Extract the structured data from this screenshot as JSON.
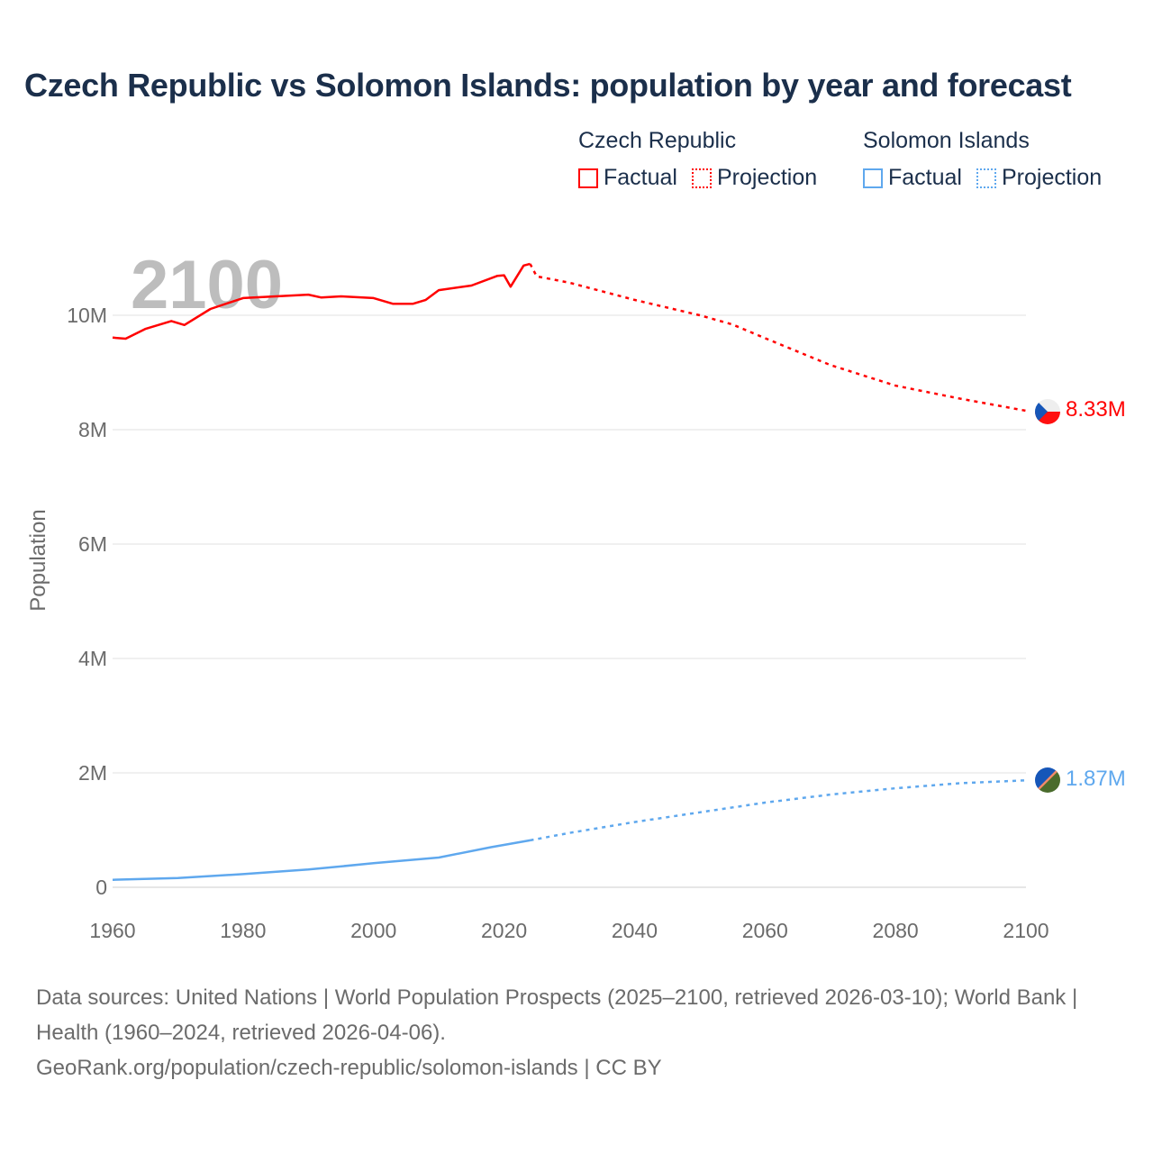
{
  "title": "Czech Republic vs Solomon Islands: population by year and forecast",
  "legend": {
    "groups": [
      {
        "name": "Czech Republic",
        "factual": "Factual",
        "projection": "Projection",
        "color": "#ff0000"
      },
      {
        "name": "Solomon Islands",
        "factual": "Factual",
        "projection": "Projection",
        "color": "#5fa8ee"
      }
    ]
  },
  "source": {
    "line1": "Data sources: United Nations | World Population Prospects (2025–2100, retrieved 2026-03-10); World Bank | Health (1960–2024, retrieved 2026-04-06).",
    "line2": "GeoRank.org/population/czech-republic/solomon-islands | CC BY"
  },
  "chart_data": {
    "type": "line",
    "title": "Czech Republic vs Solomon Islands: population by year and forecast",
    "ylabel": "Population",
    "xlabel": "",
    "year_watermark": "2100",
    "xlim": [
      1960,
      2100
    ],
    "ylim": [
      0,
      11000000
    ],
    "x_ticks": [
      1960,
      1980,
      2000,
      2020,
      2040,
      2060,
      2080,
      2100
    ],
    "y_ticks": [
      {
        "v": 0,
        "label": "0"
      },
      {
        "v": 2000000,
        "label": "2M"
      },
      {
        "v": 4000000,
        "label": "4M"
      },
      {
        "v": 6000000,
        "label": "6M"
      },
      {
        "v": 8000000,
        "label": "8M"
      },
      {
        "v": 10000000,
        "label": "10M"
      }
    ],
    "grid": true,
    "series": [
      {
        "name": "Czech Republic",
        "color": "#ff0000",
        "end_label": "8.33M",
        "factual": [
          [
            1960,
            9.61
          ],
          [
            1962,
            9.59
          ],
          [
            1965,
            9.76
          ],
          [
            1969,
            9.9
          ],
          [
            1971,
            9.83
          ],
          [
            1975,
            10.11
          ],
          [
            1980,
            10.3
          ],
          [
            1985,
            10.33
          ],
          [
            1990,
            10.36
          ],
          [
            1992,
            10.31
          ],
          [
            1995,
            10.33
          ],
          [
            2000,
            10.3
          ],
          [
            2003,
            10.2
          ],
          [
            2006,
            10.2
          ],
          [
            2008,
            10.27
          ],
          [
            2010,
            10.44
          ],
          [
            2015,
            10.52
          ],
          [
            2019,
            10.69
          ],
          [
            2020,
            10.7
          ],
          [
            2021,
            10.5
          ],
          [
            2023,
            10.87
          ],
          [
            2024,
            10.9
          ]
        ],
        "projection": [
          [
            2024,
            10.9
          ],
          [
            2025,
            10.68
          ],
          [
            2030,
            10.57
          ],
          [
            2040,
            10.27
          ],
          [
            2050,
            10.0
          ],
          [
            2055,
            9.84
          ],
          [
            2060,
            9.6
          ],
          [
            2070,
            9.13
          ],
          [
            2080,
            8.77
          ],
          [
            2090,
            8.54
          ],
          [
            2100,
            8.33
          ]
        ]
      },
      {
        "name": "Solomon Islands",
        "color": "#5fa8ee",
        "end_label": "1.87M",
        "factual": [
          [
            1960,
            0.13
          ],
          [
            1970,
            0.16
          ],
          [
            1980,
            0.23
          ],
          [
            1990,
            0.31
          ],
          [
            2000,
            0.42
          ],
          [
            2010,
            0.52
          ],
          [
            2018,
            0.7
          ],
          [
            2024,
            0.82
          ]
        ],
        "projection": [
          [
            2024,
            0.82
          ],
          [
            2030,
            0.95
          ],
          [
            2040,
            1.14
          ],
          [
            2050,
            1.31
          ],
          [
            2060,
            1.48
          ],
          [
            2070,
            1.62
          ],
          [
            2080,
            1.73
          ],
          [
            2090,
            1.82
          ],
          [
            2100,
            1.87
          ]
        ]
      }
    ],
    "value_unit": "millions"
  }
}
